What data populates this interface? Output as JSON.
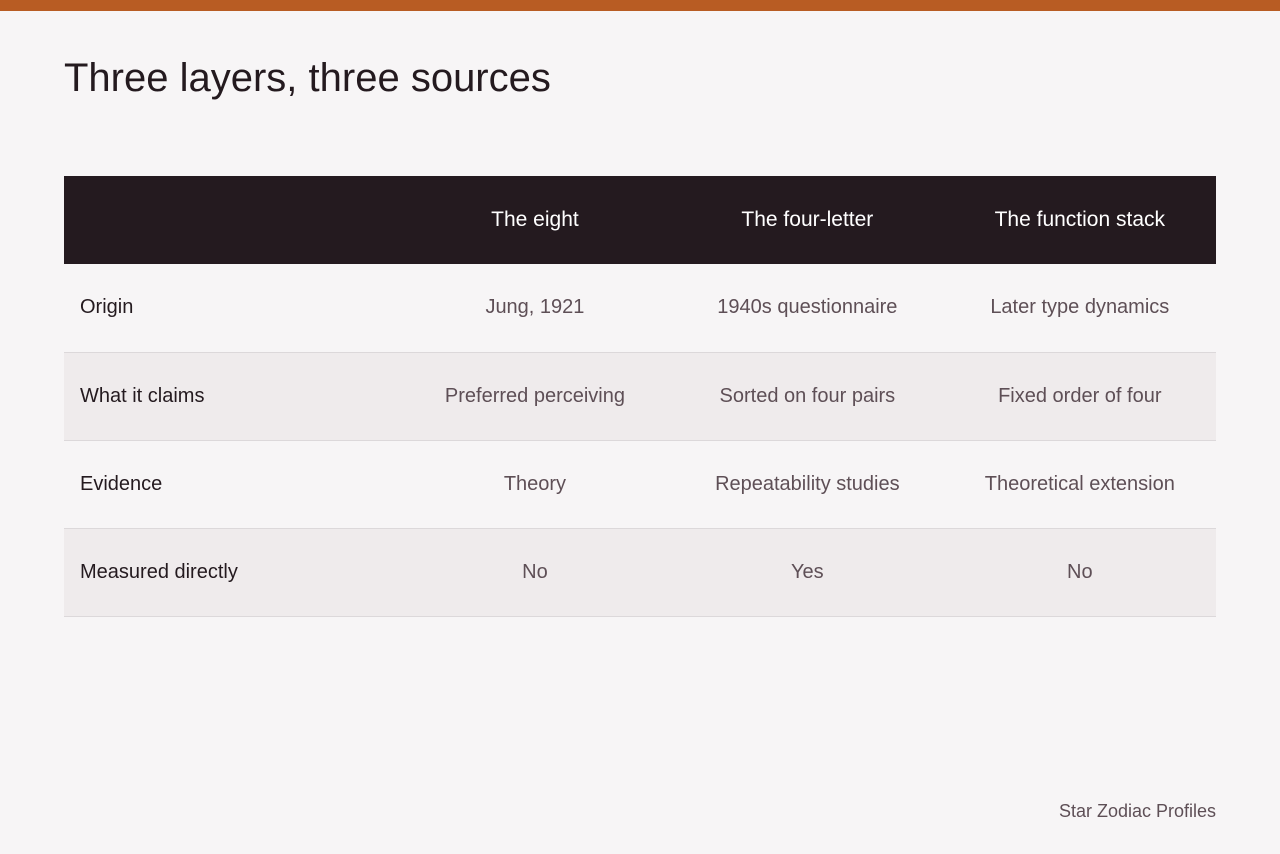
{
  "header": {
    "title": "Three layers, three sources"
  },
  "table": {
    "columns": [
      "The eight",
      "The four-letter",
      "The function stack"
    ],
    "rows": [
      [
        "Origin",
        "Jung, 1921",
        "1940s questionnaire",
        "Later type dynamics"
      ],
      [
        "What it claims",
        "Preferred perceiving",
        "Sorted on four pairs",
        "Fixed order of four"
      ],
      [
        "Evidence",
        "Theory",
        "Repeatability studies",
        "Theoretical extension"
      ],
      [
        "Measured directly",
        "No",
        "Yes",
        "No"
      ]
    ]
  },
  "footer": {
    "brand": "Star Zodiac Profiles"
  }
}
